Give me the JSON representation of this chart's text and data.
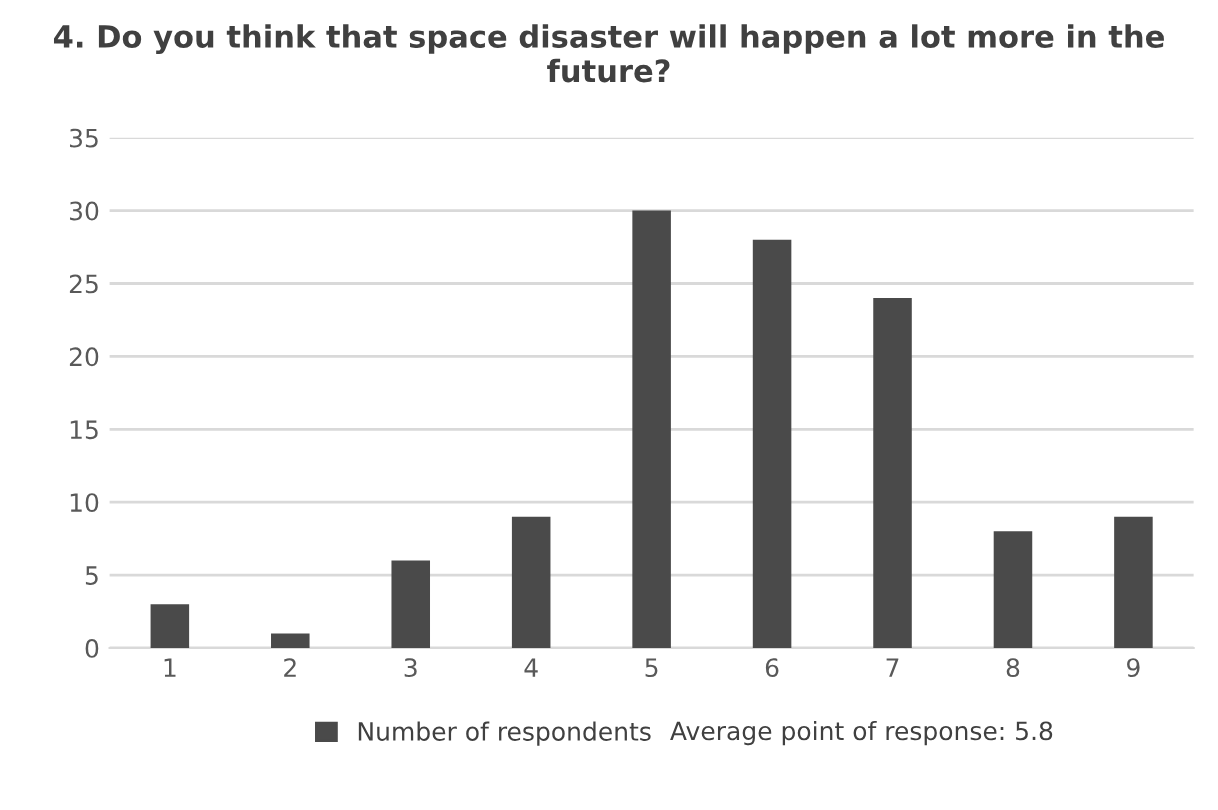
{
  "chart_data": {
    "type": "bar",
    "title": "4. Do you think that space disaster will happen a lot more in the future?",
    "categories": [
      "1",
      "2",
      "3",
      "4",
      "5",
      "6",
      "7",
      "8",
      "9"
    ],
    "series": [
      {
        "name": "Number of respondents",
        "color": "#4a4a4a",
        "values": [
          3,
          1,
          6,
          9,
          30,
          28,
          24,
          8,
          9
        ]
      }
    ],
    "ylim": [
      0,
      35
    ],
    "yticks": [
      0,
      5,
      10,
      15,
      20,
      25,
      30,
      35
    ],
    "grid": "y",
    "legend": "bottom",
    "annotations": [
      "Average point of response: 5.8"
    ]
  }
}
